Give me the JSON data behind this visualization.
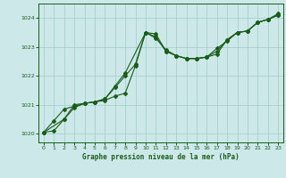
{
  "title": "Graphe pression niveau de la mer (hPa)",
  "bg_color": "#cce8e8",
  "grid_color": "#aacece",
  "line_color": "#1a5c1a",
  "xlim": [
    -0.5,
    23.5
  ],
  "ylim": [
    1019.7,
    1024.5
  ],
  "yticks": [
    1020,
    1021,
    1022,
    1023,
    1024
  ],
  "xticks": [
    0,
    1,
    2,
    3,
    4,
    5,
    6,
    7,
    8,
    9,
    10,
    11,
    12,
    13,
    14,
    15,
    16,
    17,
    18,
    19,
    20,
    21,
    22,
    23
  ],
  "series1_x": [
    0,
    1,
    2,
    3,
    4,
    5,
    6,
    7,
    8,
    9,
    10,
    11,
    12,
    13,
    14,
    15,
    16,
    17,
    18,
    19,
    20,
    21,
    22,
    23
  ],
  "series1_y": [
    1020.05,
    1020.45,
    1020.85,
    1020.95,
    1021.05,
    1021.1,
    1021.15,
    1021.3,
    1021.4,
    1022.35,
    1023.5,
    1023.35,
    1022.85,
    1022.7,
    1022.6,
    1022.6,
    1022.65,
    1022.75,
    1023.25,
    1023.5,
    1023.55,
    1023.85,
    1023.95,
    1024.15
  ],
  "series2_x": [
    0,
    1,
    2,
    3,
    4,
    5,
    6,
    7,
    8,
    9,
    10,
    11,
    12,
    13,
    14,
    15,
    16,
    17,
    18,
    19,
    20,
    21,
    22,
    23
  ],
  "series2_y": [
    1020.05,
    1020.1,
    1020.5,
    1020.9,
    1021.05,
    1021.1,
    1021.2,
    1021.6,
    1022.0,
    1022.4,
    1023.5,
    1023.45,
    1022.85,
    1022.7,
    1022.6,
    1022.6,
    1022.65,
    1022.95,
    1023.2,
    1023.5,
    1023.55,
    1023.85,
    1023.95,
    1024.1
  ],
  "series3_x": [
    0,
    2,
    3,
    4,
    5,
    6,
    7,
    8,
    10,
    11,
    12,
    13,
    14,
    15,
    16,
    17,
    18,
    19,
    20,
    21,
    22,
    23
  ],
  "series3_y": [
    1020.05,
    1020.5,
    1021.0,
    1021.05,
    1021.1,
    1021.2,
    1021.65,
    1022.1,
    1023.5,
    1023.3,
    1022.9,
    1022.7,
    1022.6,
    1022.6,
    1022.65,
    1022.85,
    1023.25,
    1023.5,
    1023.55,
    1023.85,
    1023.95,
    1024.1
  ]
}
